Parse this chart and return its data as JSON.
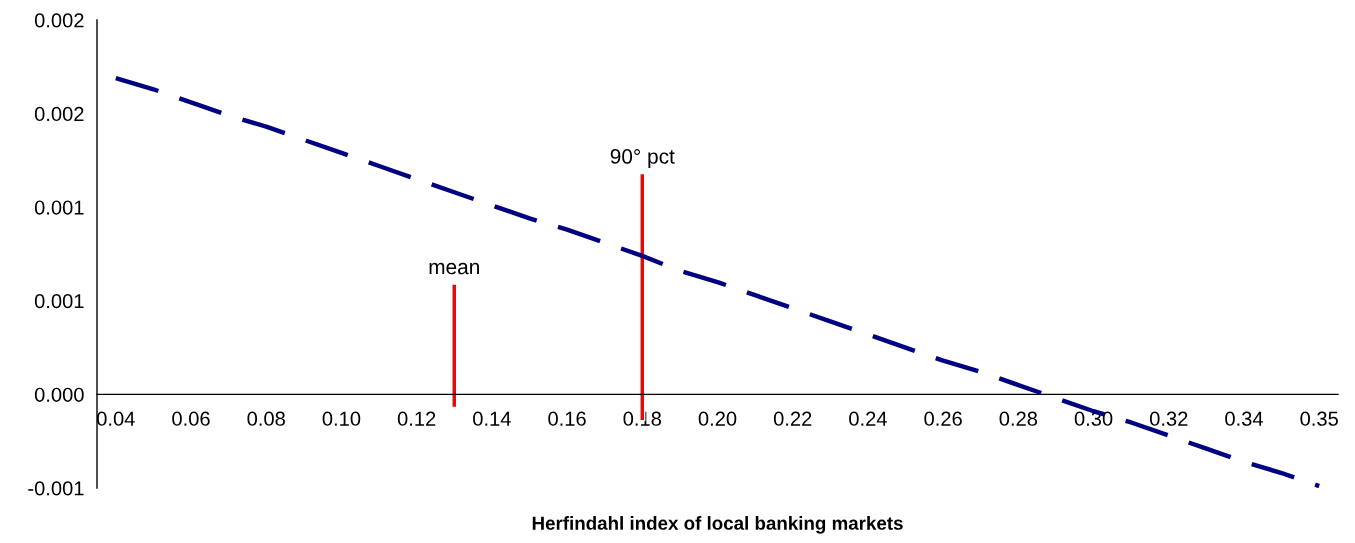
{
  "chart_data": {
    "type": "line",
    "xlabel": "Herfindahl index of local banking markets",
    "categories": [
      "0.04",
      null,
      "0.06",
      null,
      "0.08",
      null,
      "0.10",
      null,
      "0.12",
      null,
      "0.14",
      null,
      "0.16",
      null,
      "0.18",
      null,
      "0.20",
      null,
      "0.22",
      null,
      "0.24",
      null,
      "0.26",
      null,
      "0.28",
      null,
      "0.30",
      null,
      "0.32",
      null,
      "0.34",
      null,
      "0.35"
    ],
    "series": [
      {
        "color": "#000080",
        "line_style": "dashed",
        "values": [
          0.00169,
          0.00163,
          0.00156,
          0.00149,
          0.00143,
          0.00136,
          0.00129,
          0.00122,
          0.00115,
          0.00108,
          0.00101,
          0.00094,
          0.00088,
          0.00081,
          0.00074,
          0.00066,
          0.0006,
          0.00053,
          0.00046,
          0.00039,
          0.00032,
          0.00025,
          0.00018,
          0.00012,
          5e-05,
          -2e-05,
          -9e-05,
          -0.00015,
          -0.00022,
          -0.00029,
          -0.00036,
          -0.00042,
          -0.00049
        ]
      },
      {
        "type": "bar",
        "color": "#ff0000",
        "values": [
          null,
          null,
          null,
          null,
          null,
          null,
          null,
          null,
          null,
          0.00066,
          null,
          null,
          null,
          null,
          0.00132,
          null,
          null,
          null,
          null,
          null,
          null,
          null,
          null,
          null,
          null,
          null,
          null,
          null,
          null,
          null,
          null,
          null,
          null
        ],
        "base": [
          null,
          null,
          null,
          null,
          null,
          null,
          null,
          null,
          null,
          -7e-05,
          null,
          null,
          null,
          null,
          -0.00014,
          null,
          null,
          null,
          null,
          null,
          null,
          null,
          null,
          null,
          null,
          null,
          null,
          null,
          null,
          null,
          null,
          null,
          null
        ]
      }
    ],
    "annotations": [
      {
        "text": "mean",
        "y": 0.00059
      },
      {
        "text": "90° pct",
        "x": "0.18",
        "y": 0.00118
      }
    ],
    "ylim": [
      -0.0005,
      0.002
    ],
    "yticks": [
      {
        "value": -0.0005,
        "label": "-0.001"
      },
      {
        "value": 0,
        "label": "0.000"
      },
      {
        "value": 0.0005,
        "label": "0.001"
      },
      {
        "value": 0.001,
        "label": "0.001"
      },
      {
        "value": 0.0015,
        "label": "0.002"
      },
      {
        "value": 0.002,
        "label": "0.002"
      }
    ],
    "grid": false,
    "legend": false
  }
}
